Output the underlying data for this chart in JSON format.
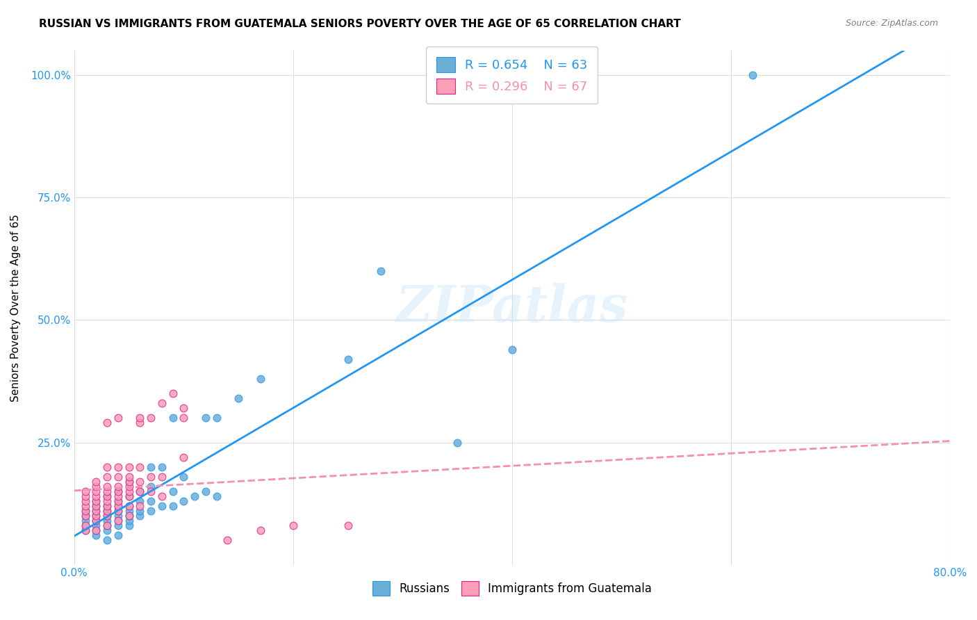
{
  "title": "RUSSIAN VS IMMIGRANTS FROM GUATEMALA SENIORS POVERTY OVER THE AGE OF 65 CORRELATION CHART",
  "source": "Source: ZipAtlas.com",
  "ylabel": "Seniors Poverty Over the Age of 65",
  "xlabel": "",
  "xlim": [
    0.0,
    0.8
  ],
  "ylim": [
    0.0,
    1.05
  ],
  "xticks": [
    0.0,
    0.2,
    0.4,
    0.6,
    0.8
  ],
  "xticklabels": [
    "0.0%",
    "",
    "",
    "",
    "80.0%"
  ],
  "yticks": [
    0.25,
    0.5,
    0.75,
    1.0
  ],
  "yticklabels": [
    "25.0%",
    "50.0%",
    "75.0%",
    "100.0%"
  ],
  "russian_R": 0.654,
  "russian_N": 63,
  "guatemala_R": 0.296,
  "guatemala_N": 67,
  "russian_color": "#6baed6",
  "guatemala_color": "#fa9fb5",
  "russian_edge_color": "#e91e8c",
  "russian_scatter": [
    [
      0.01,
      0.07
    ],
    [
      0.01,
      0.08
    ],
    [
      0.01,
      0.09
    ],
    [
      0.01,
      0.1
    ],
    [
      0.01,
      0.11
    ],
    [
      0.02,
      0.06
    ],
    [
      0.02,
      0.07
    ],
    [
      0.02,
      0.08
    ],
    [
      0.02,
      0.09
    ],
    [
      0.02,
      0.1
    ],
    [
      0.02,
      0.11
    ],
    [
      0.02,
      0.12
    ],
    [
      0.02,
      0.13
    ],
    [
      0.03,
      0.05
    ],
    [
      0.03,
      0.07
    ],
    [
      0.03,
      0.08
    ],
    [
      0.03,
      0.09
    ],
    [
      0.03,
      0.1
    ],
    [
      0.03,
      0.11
    ],
    [
      0.03,
      0.12
    ],
    [
      0.03,
      0.14
    ],
    [
      0.04,
      0.06
    ],
    [
      0.04,
      0.08
    ],
    [
      0.04,
      0.09
    ],
    [
      0.04,
      0.1
    ],
    [
      0.04,
      0.11
    ],
    [
      0.04,
      0.12
    ],
    [
      0.04,
      0.13
    ],
    [
      0.04,
      0.15
    ],
    [
      0.05,
      0.08
    ],
    [
      0.05,
      0.09
    ],
    [
      0.05,
      0.1
    ],
    [
      0.05,
      0.11
    ],
    [
      0.05,
      0.12
    ],
    [
      0.05,
      0.14
    ],
    [
      0.05,
      0.17
    ],
    [
      0.06,
      0.1
    ],
    [
      0.06,
      0.11
    ],
    [
      0.06,
      0.13
    ],
    [
      0.06,
      0.15
    ],
    [
      0.07,
      0.11
    ],
    [
      0.07,
      0.13
    ],
    [
      0.07,
      0.16
    ],
    [
      0.07,
      0.2
    ],
    [
      0.08,
      0.12
    ],
    [
      0.08,
      0.2
    ],
    [
      0.09,
      0.12
    ],
    [
      0.09,
      0.15
    ],
    [
      0.09,
      0.3
    ],
    [
      0.1,
      0.13
    ],
    [
      0.1,
      0.18
    ],
    [
      0.11,
      0.14
    ],
    [
      0.12,
      0.15
    ],
    [
      0.12,
      0.3
    ],
    [
      0.13,
      0.14
    ],
    [
      0.13,
      0.3
    ],
    [
      0.15,
      0.34
    ],
    [
      0.17,
      0.38
    ],
    [
      0.25,
      0.42
    ],
    [
      0.28,
      0.6
    ],
    [
      0.35,
      0.25
    ],
    [
      0.4,
      0.44
    ],
    [
      0.62,
      1.0
    ]
  ],
  "guatemala_scatter": [
    [
      0.01,
      0.07
    ],
    [
      0.01,
      0.08
    ],
    [
      0.01,
      0.1
    ],
    [
      0.01,
      0.11
    ],
    [
      0.01,
      0.12
    ],
    [
      0.01,
      0.13
    ],
    [
      0.01,
      0.14
    ],
    [
      0.01,
      0.15
    ],
    [
      0.02,
      0.07
    ],
    [
      0.02,
      0.09
    ],
    [
      0.02,
      0.1
    ],
    [
      0.02,
      0.11
    ],
    [
      0.02,
      0.12
    ],
    [
      0.02,
      0.13
    ],
    [
      0.02,
      0.14
    ],
    [
      0.02,
      0.15
    ],
    [
      0.02,
      0.16
    ],
    [
      0.02,
      0.17
    ],
    [
      0.03,
      0.08
    ],
    [
      0.03,
      0.1
    ],
    [
      0.03,
      0.11
    ],
    [
      0.03,
      0.12
    ],
    [
      0.03,
      0.13
    ],
    [
      0.03,
      0.14
    ],
    [
      0.03,
      0.15
    ],
    [
      0.03,
      0.16
    ],
    [
      0.03,
      0.18
    ],
    [
      0.03,
      0.2
    ],
    [
      0.03,
      0.29
    ],
    [
      0.04,
      0.09
    ],
    [
      0.04,
      0.11
    ],
    [
      0.04,
      0.12
    ],
    [
      0.04,
      0.13
    ],
    [
      0.04,
      0.14
    ],
    [
      0.04,
      0.15
    ],
    [
      0.04,
      0.16
    ],
    [
      0.04,
      0.18
    ],
    [
      0.04,
      0.2
    ],
    [
      0.04,
      0.3
    ],
    [
      0.05,
      0.1
    ],
    [
      0.05,
      0.12
    ],
    [
      0.05,
      0.14
    ],
    [
      0.05,
      0.15
    ],
    [
      0.05,
      0.16
    ],
    [
      0.05,
      0.17
    ],
    [
      0.05,
      0.18
    ],
    [
      0.05,
      0.2
    ],
    [
      0.06,
      0.12
    ],
    [
      0.06,
      0.15
    ],
    [
      0.06,
      0.17
    ],
    [
      0.06,
      0.2
    ],
    [
      0.06,
      0.29
    ],
    [
      0.06,
      0.3
    ],
    [
      0.07,
      0.15
    ],
    [
      0.07,
      0.18
    ],
    [
      0.07,
      0.3
    ],
    [
      0.08,
      0.14
    ],
    [
      0.08,
      0.18
    ],
    [
      0.08,
      0.33
    ],
    [
      0.09,
      0.35
    ],
    [
      0.1,
      0.22
    ],
    [
      0.1,
      0.3
    ],
    [
      0.1,
      0.32
    ],
    [
      0.14,
      0.05
    ],
    [
      0.17,
      0.07
    ],
    [
      0.2,
      0.08
    ],
    [
      0.25,
      0.08
    ]
  ],
  "russian_line_color": "#2196F3",
  "guatemala_line_color": "#F48FB1",
  "guatemala_edge_color": "#e91e8c",
  "watermark": "ZIPatlas",
  "background_color": "#ffffff",
  "grid_color": "#dddddd",
  "tick_label_color": "#2196F3"
}
